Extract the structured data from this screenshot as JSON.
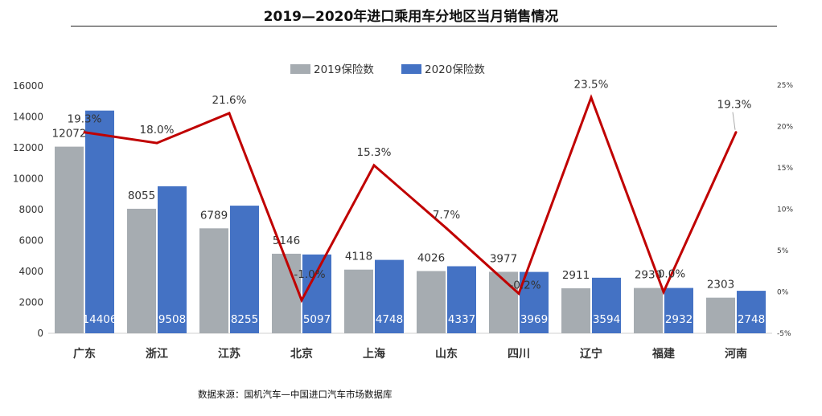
{
  "chart_data": {
    "type": "bar",
    "title": "2019—2020年进口乘用车分地区当月销售情况",
    "categories": [
      "广东",
      "浙江",
      "江苏",
      "北京",
      "上海",
      "山东",
      "四川",
      "辽宁",
      "福建",
      "河南"
    ],
    "series": [
      {
        "name": "2019保险数",
        "type": "bar",
        "axis": "left",
        "color": "#a6acb1",
        "values": [
          12072,
          8055,
          6789,
          5146,
          4118,
          4026,
          3977,
          2911,
          2930,
          2303
        ]
      },
      {
        "name": "2020保险数",
        "type": "bar",
        "axis": "left",
        "color": "#4472c4",
        "values": [
          14406,
          9508,
          8255,
          5097,
          4748,
          4337,
          3969,
          3594,
          2932,
          2748
        ]
      },
      {
        "type": "line",
        "axis": "right",
        "color": "#c00000",
        "values": [
          19.3,
          18.0,
          21.6,
          -1.0,
          15.3,
          7.7,
          -0.2,
          23.5,
          0.0,
          19.3
        ],
        "labels": [
          "19.3%",
          "18.0%",
          "21.6%",
          "-1.0%",
          "15.3%",
          "7.7%",
          "-0.2%",
          "23.5%",
          "0.0%",
          "19.3%"
        ]
      }
    ],
    "y_left": {
      "range": [
        0,
        16000
      ],
      "ticks": [
        "0",
        "2000",
        "4000",
        "6000",
        "8000",
        "10000",
        "12000",
        "14000",
        "16000"
      ]
    },
    "y_right": {
      "range": [
        -5,
        25
      ],
      "ticks": [
        "-5%",
        "0%",
        "5%",
        "10%",
        "15%",
        "20%",
        "25%"
      ]
    },
    "legend_position": "top-center",
    "grid": false
  },
  "source_note": "数据来源：国机汽车—中国进口汽车市场数据库"
}
